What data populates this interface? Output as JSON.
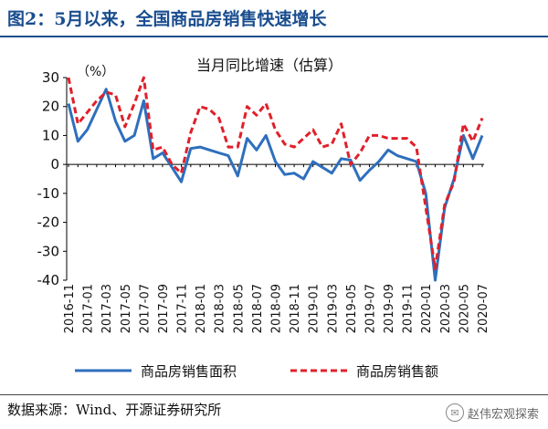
{
  "figure": {
    "title": "图2：5月以来，全国商品房销售快速增长",
    "source": "数据来源：Wind、开源证券研究所",
    "watermark": "赵伟宏观探索"
  },
  "chart_data": {
    "type": "line",
    "title": "当月同比增速（估算）",
    "unit_label": "（%）",
    "ylim": [
      -40,
      30
    ],
    "yticks": [
      -40,
      -30,
      -20,
      -10,
      0,
      10,
      20,
      30
    ],
    "grid": false,
    "legend_position": "bottom",
    "x": [
      "2016-11",
      "2016-12",
      "2017-01",
      "2017-02",
      "2017-03",
      "2017-04",
      "2017-05",
      "2017-06",
      "2017-07",
      "2017-08",
      "2017-09",
      "2017-10",
      "2017-11",
      "2017-12",
      "2018-01",
      "2018-02",
      "2018-03",
      "2018-04",
      "2018-05",
      "2018-06",
      "2018-07",
      "2018-08",
      "2018-09",
      "2018-10",
      "2018-11",
      "2018-12",
      "2019-01",
      "2019-02",
      "2019-03",
      "2019-04",
      "2019-05",
      "2019-06",
      "2019-07",
      "2019-08",
      "2019-09",
      "2019-10",
      "2019-11",
      "2019-12",
      "2020-01",
      "2020-02",
      "2020-03",
      "2020-04",
      "2020-05",
      "2020-06",
      "2020-07"
    ],
    "xtick_labels": [
      "2016-11",
      "2017-01",
      "2017-03",
      "2017-05",
      "2017-07",
      "2017-09",
      "2017-11",
      "2018-01",
      "2018-03",
      "2018-05",
      "2018-07",
      "2018-09",
      "2018-11",
      "2019-01",
      "2019-03",
      "2019-05",
      "2019-07",
      "2019-09",
      "2019-11",
      "2020-01",
      "2020-03",
      "2020-05",
      "2020-07"
    ],
    "series": [
      {
        "name": "商品房销售面积",
        "color": "#2e6fbd",
        "style": "solid",
        "values": [
          21,
          8,
          12,
          19,
          26,
          15,
          8,
          10,
          22,
          2,
          4,
          -1,
          -6,
          5.5,
          6,
          5,
          4,
          3,
          -4,
          9,
          5,
          10,
          1,
          -3.5,
          -3,
          -5,
          1,
          -1,
          -3,
          2,
          1.5,
          -5.5,
          -2,
          1,
          5,
          3,
          2,
          1,
          -10,
          -40,
          -15,
          -5,
          10,
          2,
          10
        ]
      },
      {
        "name": "商品房销售额",
        "color": "#e0202a",
        "style": "dashed",
        "values": [
          30,
          14,
          18,
          22,
          25,
          24,
          13,
          21,
          30,
          5,
          6,
          0,
          -3,
          11,
          20,
          19,
          16,
          6,
          6,
          20,
          17,
          21,
          12,
          7,
          6,
          9,
          12,
          6,
          7,
          14,
          0,
          4,
          10,
          10,
          9,
          9,
          9,
          6,
          -15,
          -36,
          -14,
          -6,
          14,
          8,
          16
        ]
      }
    ]
  }
}
